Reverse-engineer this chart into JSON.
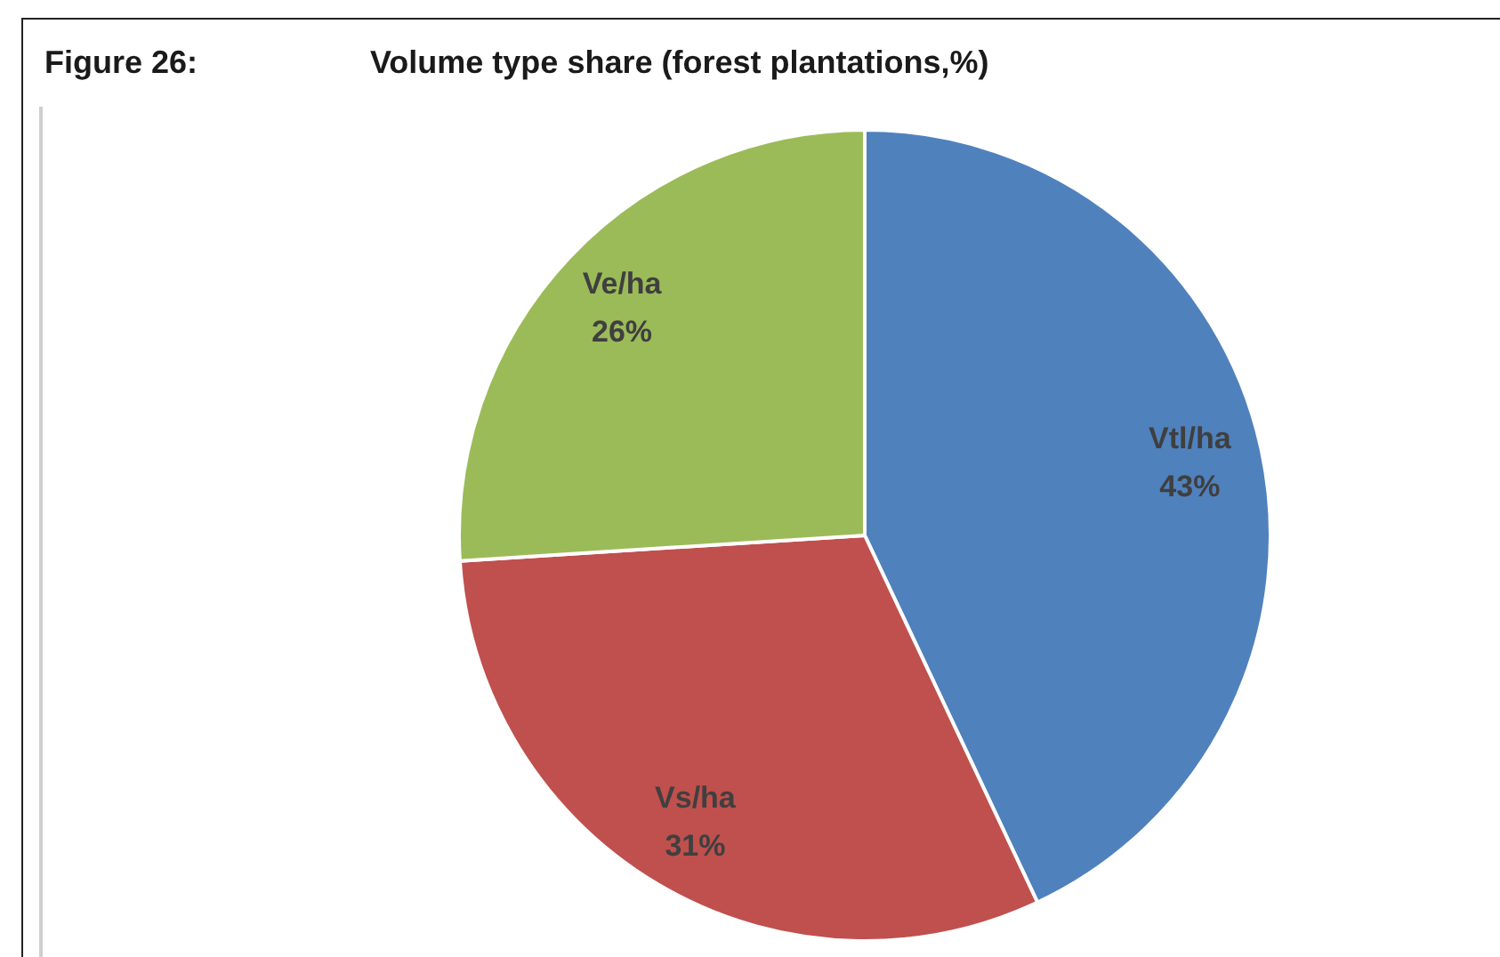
{
  "chart_data": {
    "type": "pie",
    "title": "Figure 26:",
    "subtitle": "Volume type share (forest plantations,%)",
    "categories": [
      "Vtl/ha",
      "Vs/ha",
      "Ve/ha"
    ],
    "values": [
      43,
      31,
      26
    ],
    "colors": [
      "#4f81bd",
      "#c0504d",
      "#9bbb59"
    ],
    "value_labels": [
      "43%",
      "31%",
      "26%"
    ]
  }
}
